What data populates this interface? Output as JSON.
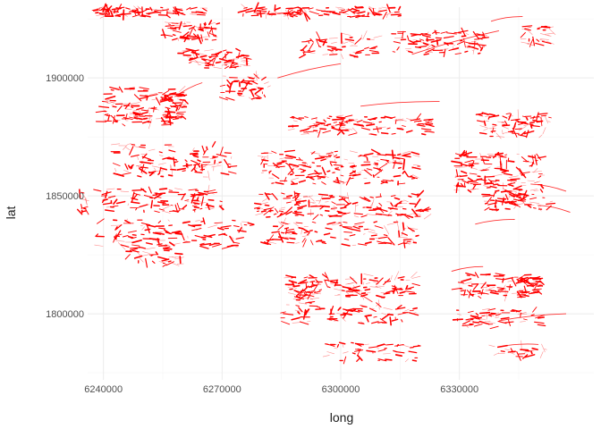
{
  "chart_data": {
    "type": "scatter",
    "title": "",
    "xlabel": "long",
    "ylabel": "lat",
    "xlim": [
      6236000,
      6364000
    ],
    "ylim": [
      1772000,
      1930000
    ],
    "x_ticks": [
      6240000,
      6270000,
      6300000,
      6330000
    ],
    "x_tick_labels": [
      "6240000",
      "6270000",
      "6300000",
      "6330000"
    ],
    "y_ticks": [
      1800000,
      1850000,
      1900000
    ],
    "y_tick_labels": [
      "1800000",
      "1850000",
      "1900000"
    ],
    "grid": true,
    "theme": "minimal",
    "mark_color": "#ff0000",
    "description_of_marks": "dense red line/segment fragments",
    "clusters": [
      {
        "x": 6252000,
        "y": 1928000,
        "w": 28000,
        "h": 4000,
        "n": 90
      },
      {
        "x": 6295000,
        "y": 1928000,
        "w": 40000,
        "h": 4000,
        "n": 110
      },
      {
        "x": 6262000,
        "y": 1920000,
        "w": 14000,
        "h": 8000,
        "n": 60
      },
      {
        "x": 6325000,
        "y": 1915000,
        "w": 24000,
        "h": 10000,
        "n": 90
      },
      {
        "x": 6350000,
        "y": 1918000,
        "w": 8000,
        "h": 8000,
        "n": 30
      },
      {
        "x": 6268000,
        "y": 1908000,
        "w": 18000,
        "h": 8000,
        "n": 70
      },
      {
        "x": 6300000,
        "y": 1914000,
        "w": 20000,
        "h": 10000,
        "n": 60
      },
      {
        "x": 6250000,
        "y": 1888000,
        "w": 22000,
        "h": 16000,
        "n": 150
      },
      {
        "x": 6276000,
        "y": 1896000,
        "w": 12000,
        "h": 10000,
        "n": 50
      },
      {
        "x": 6305000,
        "y": 1880000,
        "w": 36000,
        "h": 8000,
        "n": 110
      },
      {
        "x": 6344000,
        "y": 1880000,
        "w": 18000,
        "h": 10000,
        "n": 80
      },
      {
        "x": 6258000,
        "y": 1865000,
        "w": 30000,
        "h": 14000,
        "n": 120
      },
      {
        "x": 6300000,
        "y": 1862000,
        "w": 40000,
        "h": 14000,
        "n": 180
      },
      {
        "x": 6340000,
        "y": 1860000,
        "w": 22000,
        "h": 16000,
        "n": 140
      },
      {
        "x": 6252000,
        "y": 1848000,
        "w": 36000,
        "h": 10000,
        "n": 120
      },
      {
        "x": 6300000,
        "y": 1846000,
        "w": 44000,
        "h": 10000,
        "n": 160
      },
      {
        "x": 6345000,
        "y": 1848000,
        "w": 18000,
        "h": 8000,
        "n": 70
      },
      {
        "x": 6258000,
        "y": 1834000,
        "w": 40000,
        "h": 12000,
        "n": 120
      },
      {
        "x": 6300000,
        "y": 1834000,
        "w": 40000,
        "h": 10000,
        "n": 110
      },
      {
        "x": 6253000,
        "y": 1824000,
        "w": 14000,
        "h": 8000,
        "n": 35
      },
      {
        "x": 6290000,
        "y": 1810000,
        "w": 8000,
        "h": 12000,
        "n": 40
      },
      {
        "x": 6305000,
        "y": 1812000,
        "w": 30000,
        "h": 10000,
        "n": 100
      },
      {
        "x": 6340000,
        "y": 1812000,
        "w": 22000,
        "h": 10000,
        "n": 110
      },
      {
        "x": 6302000,
        "y": 1800000,
        "w": 34000,
        "h": 8000,
        "n": 80
      },
      {
        "x": 6340000,
        "y": 1798000,
        "w": 22000,
        "h": 8000,
        "n": 60
      },
      {
        "x": 6308000,
        "y": 1784000,
        "w": 24000,
        "h": 8000,
        "n": 50
      },
      {
        "x": 6345000,
        "y": 1784000,
        "w": 14000,
        "h": 6000,
        "n": 25
      }
    ],
    "long_lines": [
      {
        "x1": 6258000,
        "y1": 1892000,
        "x2": 6265000,
        "y2": 1898000
      },
      {
        "x1": 6284000,
        "y1": 1900000,
        "x2": 6300000,
        "y2": 1906000
      },
      {
        "x1": 6305000,
        "y1": 1888000,
        "x2": 6325000,
        "y2": 1890000
      },
      {
        "x1": 6318000,
        "y1": 1910000,
        "x2": 6340000,
        "y2": 1920000
      },
      {
        "x1": 6338000,
        "y1": 1924000,
        "x2": 6346000,
        "y2": 1926000
      },
      {
        "x1": 6340000,
        "y1": 1797000,
        "x2": 6357000,
        "y2": 1800000
      },
      {
        "x1": 6348000,
        "y1": 1855000,
        "x2": 6357000,
        "y2": 1852000
      },
      {
        "x1": 6350000,
        "y1": 1846000,
        "x2": 6358000,
        "y2": 1843000
      },
      {
        "x1": 6334000,
        "y1": 1838000,
        "x2": 6344000,
        "y2": 1840000
      },
      {
        "x1": 6328000,
        "y1": 1818000,
        "x2": 6336000,
        "y2": 1820000
      },
      {
        "x1": 6300000,
        "y1": 1812000,
        "x2": 6308000,
        "y2": 1805000
      },
      {
        "x1": 6340000,
        "y1": 1786000,
        "x2": 6350000,
        "y2": 1787000
      }
    ]
  }
}
